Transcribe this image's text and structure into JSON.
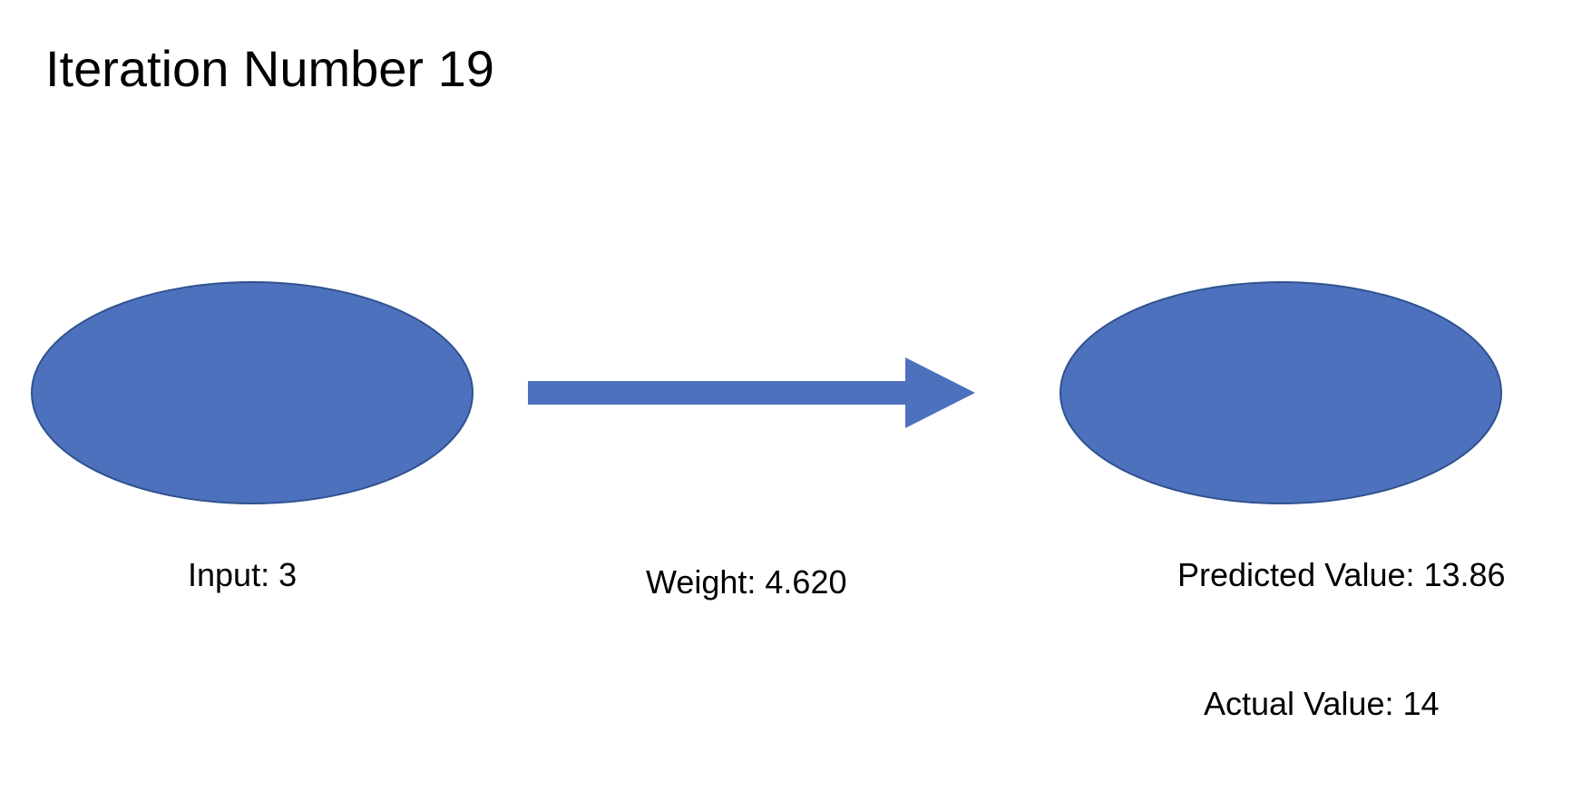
{
  "title": "Iteration Number 19",
  "input_node": {
    "label": "Input: 3"
  },
  "connection": {
    "label": "Weight: 4.620"
  },
  "output_node": {
    "predicted_label": "Predicted Value: 13.86",
    "actual_label": "Actual Value: 14"
  },
  "colors": {
    "node_fill": "#4E71BE",
    "node_stroke": "#2F528F",
    "arrow_fill": "#4E71BE"
  }
}
